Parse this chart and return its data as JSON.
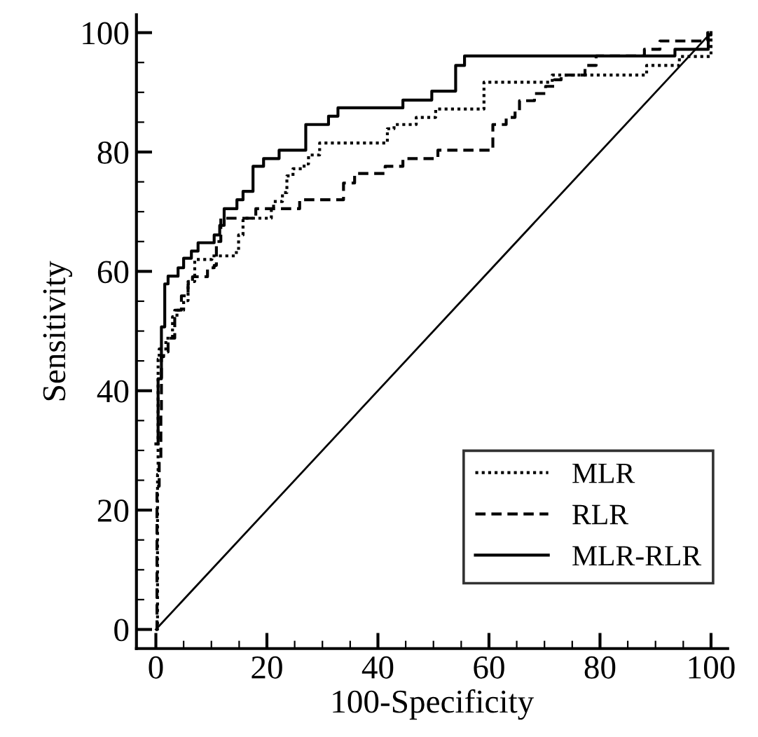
{
  "chart_data": {
    "type": "step",
    "xlabel": "100-Specificity",
    "ylabel": "Sensitivity",
    "xlim": [
      -3.5,
      103
    ],
    "ylim": [
      -3.2,
      103
    ],
    "xticks": [
      0,
      20,
      40,
      60,
      80,
      100
    ],
    "yticks": [
      0,
      20,
      40,
      60,
      80,
      100
    ],
    "grid": false,
    "legend": "bottom right",
    "marker": "none",
    "series": [
      {
        "name": "MLR",
        "color": "#000000",
        "line_style": "dotted",
        "x": [
          0,
          0.3,
          0.4,
          0.6,
          1.8,
          3.0,
          3.8,
          5.0,
          5.8,
          7.0,
          10.1,
          14.5,
          14.9,
          15.7,
          20.8,
          21.2,
          22.8,
          23.6,
          24.7,
          26.7,
          27.5,
          29.5,
          41.7,
          42.9,
          46.9,
          50.4,
          59.1,
          71.4,
          88.4,
          94.3,
          100
        ],
        "values": [
          0,
          26,
          45.3,
          47,
          48.8,
          52.4,
          53.5,
          55.1,
          58.3,
          62,
          62.6,
          63.4,
          66.1,
          68.9,
          70.5,
          71.7,
          73.2,
          76,
          77.2,
          78,
          79.5,
          81.5,
          83.9,
          84.6,
          85.8,
          87.2,
          91.7,
          92.9,
          94.5,
          96,
          100
        ]
      },
      {
        "name": "RLR",
        "color": "#000000",
        "line_style": "dashed",
        "x": [
          0,
          0.2,
          0.6,
          0.9,
          1.0,
          1.4,
          2.2,
          3.4,
          4.6,
          5.8,
          6.6,
          9.3,
          10.5,
          10.9,
          11.7,
          18,
          25.9,
          33.8,
          35.8,
          41.3,
          44.5,
          50.8,
          60.7,
          63.1,
          64.7,
          65.5,
          68.2,
          70.2,
          71.8,
          73,
          77.3,
          79.3,
          88,
          90.8,
          99.4,
          100
        ],
        "values": [
          0,
          24,
          28.3,
          36.2,
          45.7,
          46.5,
          48.8,
          53.5,
          55.9,
          57.9,
          59.1,
          60.6,
          61,
          65,
          68.9,
          70.5,
          72,
          74.8,
          76.4,
          77.6,
          78.9,
          80.3,
          84.6,
          85.8,
          87,
          88.6,
          89.8,
          91,
          92.1,
          92.9,
          94.5,
          96.1,
          97.2,
          98.6,
          100,
          100
        ]
      },
      {
        "name": "MLR-RLR",
        "color": "#000000",
        "line_style": "solid",
        "x": [
          0,
          0.4,
          1.0,
          1.6,
          2.2,
          4.0,
          5.0,
          6.4,
          7.6,
          10.5,
          11.5,
          12.3,
          14.6,
          15.7,
          17.5,
          19.4,
          22.2,
          27.0,
          31.1,
          32.8,
          44.5,
          49.7,
          54.0,
          55.6,
          93.5,
          99.5,
          100
        ],
        "values": [
          31.1,
          42,
          50.7,
          57.9,
          59.2,
          60.6,
          62.2,
          63.4,
          64.8,
          66.1,
          67.7,
          70.5,
          72,
          73.4,
          77.6,
          78.9,
          80.3,
          84.6,
          86,
          87.4,
          88.7,
          90.2,
          94.5,
          96.1,
          97.2,
          99.6,
          100
        ]
      },
      {
        "type": "line",
        "color": "#000000",
        "line_style": "solid",
        "x": [
          0,
          100
        ],
        "values": [
          0,
          100
        ]
      }
    ]
  }
}
